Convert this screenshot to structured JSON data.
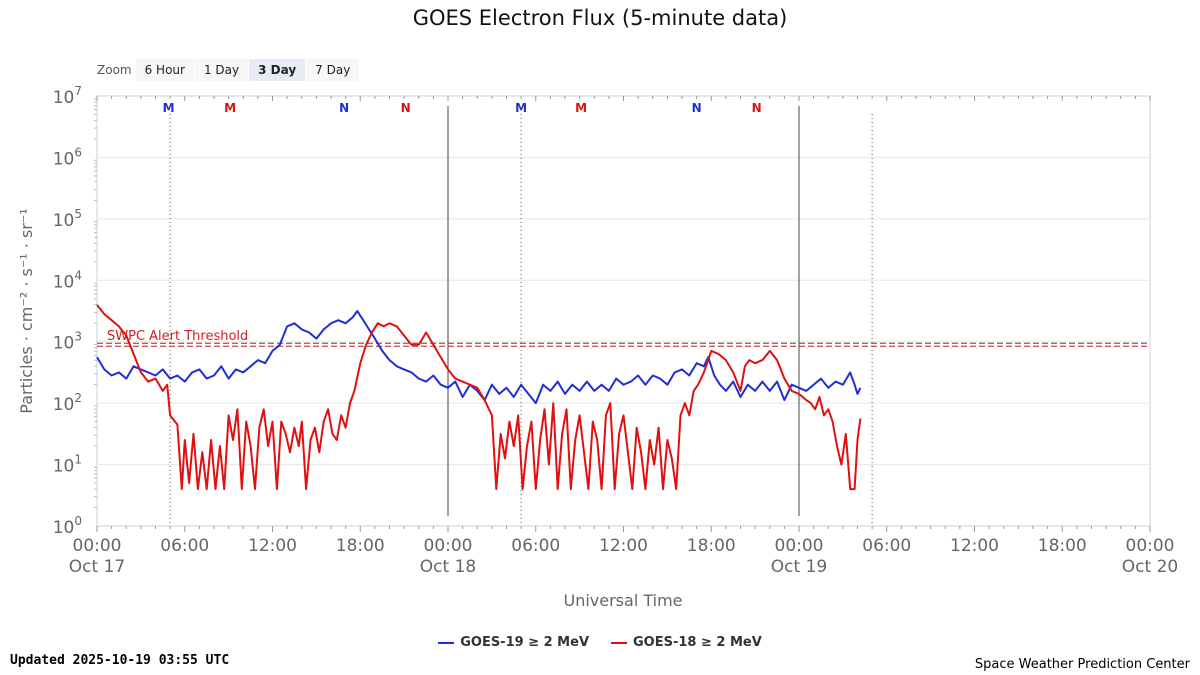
{
  "title": "GOES Electron Flux (5-minute data)",
  "zoom": {
    "label": "Zoom",
    "buttons": [
      "6 Hour",
      "1 Day",
      "3 Day",
      "7 Day"
    ],
    "active": "3 Day"
  },
  "colors": {
    "goes19": "#1f2fd6",
    "goes18": "#e01010",
    "threshold": "#b02020",
    "grid": "#e6e6e6"
  },
  "updated": "Updated 2025-10-19 03:55 UTC",
  "credit": "Space Weather Prediction Center",
  "chart_data": {
    "type": "line",
    "title": "GOES Electron Flux (5-minute data)",
    "xlabel": "Universal Time",
    "ylabel": "Particles · cm⁻² · s⁻¹ · sr⁻¹",
    "x_unit": "hours since 2025-10-17 00:00 UTC",
    "xlim": [
      0,
      72
    ],
    "ylim": [
      0,
      7
    ],
    "y_scale": "log10",
    "y_ticks": [
      {
        "exp": 0,
        "base": "10",
        "sup": "0"
      },
      {
        "exp": 1,
        "base": "10",
        "sup": "1"
      },
      {
        "exp": 2,
        "base": "10",
        "sup": "2"
      },
      {
        "exp": 3,
        "base": "10",
        "sup": "3"
      },
      {
        "exp": 4,
        "base": "10",
        "sup": "4"
      },
      {
        "exp": 5,
        "base": "10",
        "sup": "5"
      },
      {
        "exp": 6,
        "base": "10",
        "sup": "6"
      },
      {
        "exp": 7,
        "base": "10",
        "sup": "7"
      }
    ],
    "x_ticks": [
      {
        "h": 0,
        "time": "00:00",
        "date": "Oct 17"
      },
      {
        "h": 6,
        "time": "06:00",
        "date": ""
      },
      {
        "h": 12,
        "time": "12:00",
        "date": ""
      },
      {
        "h": 18,
        "time": "18:00",
        "date": ""
      },
      {
        "h": 24,
        "time": "00:00",
        "date": "Oct 18"
      },
      {
        "h": 30,
        "time": "06:00",
        "date": ""
      },
      {
        "h": 36,
        "time": "12:00",
        "date": ""
      },
      {
        "h": 42,
        "time": "18:00",
        "date": ""
      },
      {
        "h": 48,
        "time": "00:00",
        "date": "Oct 19"
      },
      {
        "h": 54,
        "time": "06:00",
        "date": ""
      },
      {
        "h": 60,
        "time": "12:00",
        "date": ""
      },
      {
        "h": 66,
        "time": "18:00",
        "date": ""
      },
      {
        "h": 72,
        "time": "00:00",
        "date": "Oct 20"
      }
    ],
    "day_lines": [
      24,
      48
    ],
    "noon_dotted_lines": [
      5,
      29,
      53
    ],
    "threshold": {
      "value_log": 2.95,
      "label": "SWPC Alert Threshold"
    },
    "markers": [
      {
        "h": 4.9,
        "label": "M",
        "series": "GOES-19"
      },
      {
        "h": 9.1,
        "label": "M",
        "series": "GOES-18"
      },
      {
        "h": 16.9,
        "label": "N",
        "series": "GOES-19"
      },
      {
        "h": 21.1,
        "label": "N",
        "series": "GOES-18"
      },
      {
        "h": 29.0,
        "label": "M",
        "series": "GOES-19"
      },
      {
        "h": 33.1,
        "label": "M",
        "series": "GOES-18"
      },
      {
        "h": 41.0,
        "label": "N",
        "series": "GOES-19"
      },
      {
        "h": 45.1,
        "label": "N",
        "series": "GOES-18"
      }
    ],
    "series": [
      {
        "name": "GOES-19 ≥ 2 MeV",
        "color": "#1f2fd6",
        "points": [
          [
            0,
            2.75
          ],
          [
            0.5,
            2.55
          ],
          [
            1,
            2.45
          ],
          [
            1.5,
            2.5
          ],
          [
            2,
            2.4
          ],
          [
            2.5,
            2.6
          ],
          [
            3,
            2.55
          ],
          [
            3.5,
            2.5
          ],
          [
            4,
            2.45
          ],
          [
            4.5,
            2.55
          ],
          [
            5,
            2.4
          ],
          [
            5.5,
            2.45
          ],
          [
            6,
            2.35
          ],
          [
            6.5,
            2.5
          ],
          [
            7,
            2.55
          ],
          [
            7.5,
            2.4
          ],
          [
            8,
            2.45
          ],
          [
            8.5,
            2.6
          ],
          [
            9,
            2.4
          ],
          [
            9.5,
            2.55
          ],
          [
            10,
            2.5
          ],
          [
            10.5,
            2.6
          ],
          [
            11,
            2.7
          ],
          [
            11.5,
            2.65
          ],
          [
            12,
            2.85
          ],
          [
            12.5,
            2.95
          ],
          [
            13,
            3.25
          ],
          [
            13.5,
            3.3
          ],
          [
            14,
            3.2
          ],
          [
            14.5,
            3.15
          ],
          [
            15,
            3.05
          ],
          [
            15.5,
            3.2
          ],
          [
            16,
            3.3
          ],
          [
            16.5,
            3.35
          ],
          [
            17,
            3.3
          ],
          [
            17.5,
            3.4
          ],
          [
            17.8,
            3.5
          ],
          [
            18.2,
            3.35
          ],
          [
            18.6,
            3.2
          ],
          [
            19,
            3.05
          ],
          [
            19.5,
            2.85
          ],
          [
            20,
            2.7
          ],
          [
            20.5,
            2.6
          ],
          [
            21,
            2.55
          ],
          [
            21.5,
            2.5
          ],
          [
            22,
            2.4
          ],
          [
            22.5,
            2.35
          ],
          [
            23,
            2.45
          ],
          [
            23.5,
            2.3
          ],
          [
            24,
            2.25
          ],
          [
            24.5,
            2.35
          ],
          [
            25,
            2.1
          ],
          [
            25.5,
            2.3
          ],
          [
            26,
            2.2
          ],
          [
            26.5,
            2.05
          ],
          [
            27,
            2.3
          ],
          [
            27.5,
            2.15
          ],
          [
            28,
            2.25
          ],
          [
            28.5,
            2.1
          ],
          [
            29,
            2.3
          ],
          [
            29.5,
            2.15
          ],
          [
            30,
            2.0
          ],
          [
            30.5,
            2.3
          ],
          [
            31,
            2.2
          ],
          [
            31.5,
            2.35
          ],
          [
            32,
            2.15
          ],
          [
            32.5,
            2.3
          ],
          [
            33,
            2.2
          ],
          [
            33.5,
            2.35
          ],
          [
            34,
            2.2
          ],
          [
            34.5,
            2.3
          ],
          [
            35,
            2.2
          ],
          [
            35.5,
            2.4
          ],
          [
            36,
            2.3
          ],
          [
            36.5,
            2.35
          ],
          [
            37,
            2.45
          ],
          [
            37.5,
            2.3
          ],
          [
            38,
            2.45
          ],
          [
            38.5,
            2.4
          ],
          [
            39,
            2.3
          ],
          [
            39.5,
            2.5
          ],
          [
            40,
            2.55
          ],
          [
            40.5,
            2.45
          ],
          [
            41,
            2.65
          ],
          [
            41.5,
            2.6
          ],
          [
            41.8,
            2.75
          ],
          [
            42.2,
            2.45
          ],
          [
            42.6,
            2.3
          ],
          [
            43,
            2.2
          ],
          [
            43.5,
            2.35
          ],
          [
            44,
            2.1
          ],
          [
            44.5,
            2.3
          ],
          [
            45,
            2.2
          ],
          [
            45.5,
            2.35
          ],
          [
            46,
            2.2
          ],
          [
            46.5,
            2.35
          ],
          [
            47,
            2.05
          ],
          [
            47.5,
            2.3
          ],
          [
            48,
            2.25
          ],
          [
            48.5,
            2.2
          ],
          [
            49,
            2.3
          ],
          [
            49.5,
            2.4
          ],
          [
            50,
            2.25
          ],
          [
            50.5,
            2.35
          ],
          [
            51,
            2.3
          ],
          [
            51.5,
            2.5
          ],
          [
            51.8,
            2.3
          ],
          [
            52,
            2.15
          ],
          [
            52.2,
            2.25
          ]
        ]
      },
      {
        "name": "GOES-18 ≥ 2 MeV",
        "color": "#e01010",
        "points": [
          [
            0,
            3.6
          ],
          [
            0.5,
            3.45
          ],
          [
            1,
            3.35
          ],
          [
            1.5,
            3.25
          ],
          [
            2,
            3.1
          ],
          [
            2.5,
            2.8
          ],
          [
            3,
            2.5
          ],
          [
            3.5,
            2.35
          ],
          [
            4,
            2.4
          ],
          [
            4.5,
            2.2
          ],
          [
            4.8,
            2.3
          ],
          [
            5,
            1.8
          ],
          [
            5.5,
            1.65
          ],
          [
            5.8,
            0.6
          ],
          [
            6,
            1.4
          ],
          [
            6.3,
            0.7
          ],
          [
            6.6,
            1.5
          ],
          [
            6.9,
            0.6
          ],
          [
            7.2,
            1.2
          ],
          [
            7.5,
            0.6
          ],
          [
            7.8,
            1.4
          ],
          [
            8.1,
            0.6
          ],
          [
            8.4,
            1.3
          ],
          [
            8.7,
            0.6
          ],
          [
            9,
            1.8
          ],
          [
            9.3,
            1.4
          ],
          [
            9.6,
            1.9
          ],
          [
            9.9,
            0.6
          ],
          [
            10.2,
            1.7
          ],
          [
            10.5,
            1.3
          ],
          [
            10.8,
            0.6
          ],
          [
            11.1,
            1.6
          ],
          [
            11.4,
            1.9
          ],
          [
            11.7,
            1.3
          ],
          [
            12,
            1.7
          ],
          [
            12.3,
            0.6
          ],
          [
            12.6,
            1.7
          ],
          [
            12.9,
            1.5
          ],
          [
            13.2,
            1.2
          ],
          [
            13.5,
            1.6
          ],
          [
            13.8,
            1.3
          ],
          [
            14,
            1.7
          ],
          [
            14.3,
            0.6
          ],
          [
            14.6,
            1.4
          ],
          [
            14.9,
            1.6
          ],
          [
            15.2,
            1.2
          ],
          [
            15.5,
            1.7
          ],
          [
            15.8,
            1.9
          ],
          [
            16.1,
            1.5
          ],
          [
            16.4,
            1.4
          ],
          [
            16.7,
            1.8
          ],
          [
            17,
            1.6
          ],
          [
            17.3,
            2.0
          ],
          [
            17.6,
            2.2
          ],
          [
            18,
            2.65
          ],
          [
            18.4,
            2.95
          ],
          [
            18.8,
            3.15
          ],
          [
            19.2,
            3.3
          ],
          [
            19.6,
            3.25
          ],
          [
            20,
            3.3
          ],
          [
            20.5,
            3.25
          ],
          [
            21,
            3.1
          ],
          [
            21.5,
            2.95
          ],
          [
            22,
            2.95
          ],
          [
            22.5,
            3.15
          ],
          [
            23,
            2.95
          ],
          [
            23.5,
            2.75
          ],
          [
            24,
            2.55
          ],
          [
            24.5,
            2.4
          ],
          [
            25,
            2.35
          ],
          [
            25.5,
            2.3
          ],
          [
            26,
            2.25
          ],
          [
            26.5,
            2.05
          ],
          [
            27,
            1.8
          ],
          [
            27.3,
            0.6
          ],
          [
            27.6,
            1.5
          ],
          [
            27.9,
            1.1
          ],
          [
            28.2,
            1.7
          ],
          [
            28.5,
            1.3
          ],
          [
            28.8,
            1.8
          ],
          [
            29.1,
            0.6
          ],
          [
            29.4,
            1.3
          ],
          [
            29.7,
            1.7
          ],
          [
            30,
            0.6
          ],
          [
            30.3,
            1.4
          ],
          [
            30.6,
            1.9
          ],
          [
            30.9,
            1.0
          ],
          [
            31.2,
            2.0
          ],
          [
            31.5,
            0.6
          ],
          [
            31.8,
            1.5
          ],
          [
            32.1,
            1.9
          ],
          [
            32.4,
            0.6
          ],
          [
            32.7,
            1.4
          ],
          [
            33,
            1.8
          ],
          [
            33.3,
            1.2
          ],
          [
            33.6,
            0.6
          ],
          [
            33.9,
            1.7
          ],
          [
            34.2,
            1.4
          ],
          [
            34.5,
            0.6
          ],
          [
            34.8,
            1.8
          ],
          [
            35.1,
            2.0
          ],
          [
            35.4,
            0.6
          ],
          [
            35.7,
            1.5
          ],
          [
            36,
            1.8
          ],
          [
            36.3,
            1.2
          ],
          [
            36.6,
            0.6
          ],
          [
            36.9,
            1.6
          ],
          [
            37.2,
            1.2
          ],
          [
            37.5,
            0.6
          ],
          [
            37.8,
            1.4
          ],
          [
            38.1,
            1.0
          ],
          [
            38.4,
            1.6
          ],
          [
            38.7,
            0.6
          ],
          [
            39,
            1.4
          ],
          [
            39.3,
            1.1
          ],
          [
            39.6,
            0.6
          ],
          [
            39.9,
            1.8
          ],
          [
            40.2,
            2.0
          ],
          [
            40.5,
            1.8
          ],
          [
            40.8,
            2.2
          ],
          [
            41.1,
            2.3
          ],
          [
            41.5,
            2.5
          ],
          [
            42,
            2.85
          ],
          [
            42.5,
            2.8
          ],
          [
            43,
            2.7
          ],
          [
            43.5,
            2.5
          ],
          [
            44,
            2.2
          ],
          [
            44.3,
            2.6
          ],
          [
            44.6,
            2.7
          ],
          [
            45,
            2.65
          ],
          [
            45.5,
            2.7
          ],
          [
            46,
            2.85
          ],
          [
            46.5,
            2.7
          ],
          [
            47,
            2.4
          ],
          [
            47.5,
            2.2
          ],
          [
            48,
            2.15
          ],
          [
            48.5,
            2.05
          ],
          [
            48.8,
            2.0
          ],
          [
            49.1,
            1.9
          ],
          [
            49.4,
            2.1
          ],
          [
            49.7,
            1.8
          ],
          [
            50,
            1.9
          ],
          [
            50.3,
            1.7
          ],
          [
            50.6,
            1.3
          ],
          [
            50.9,
            1.0
          ],
          [
            51.2,
            1.5
          ],
          [
            51.5,
            0.6
          ],
          [
            51.8,
            0.6
          ],
          [
            52,
            1.4
          ],
          [
            52.2,
            1.75
          ]
        ]
      }
    ]
  }
}
